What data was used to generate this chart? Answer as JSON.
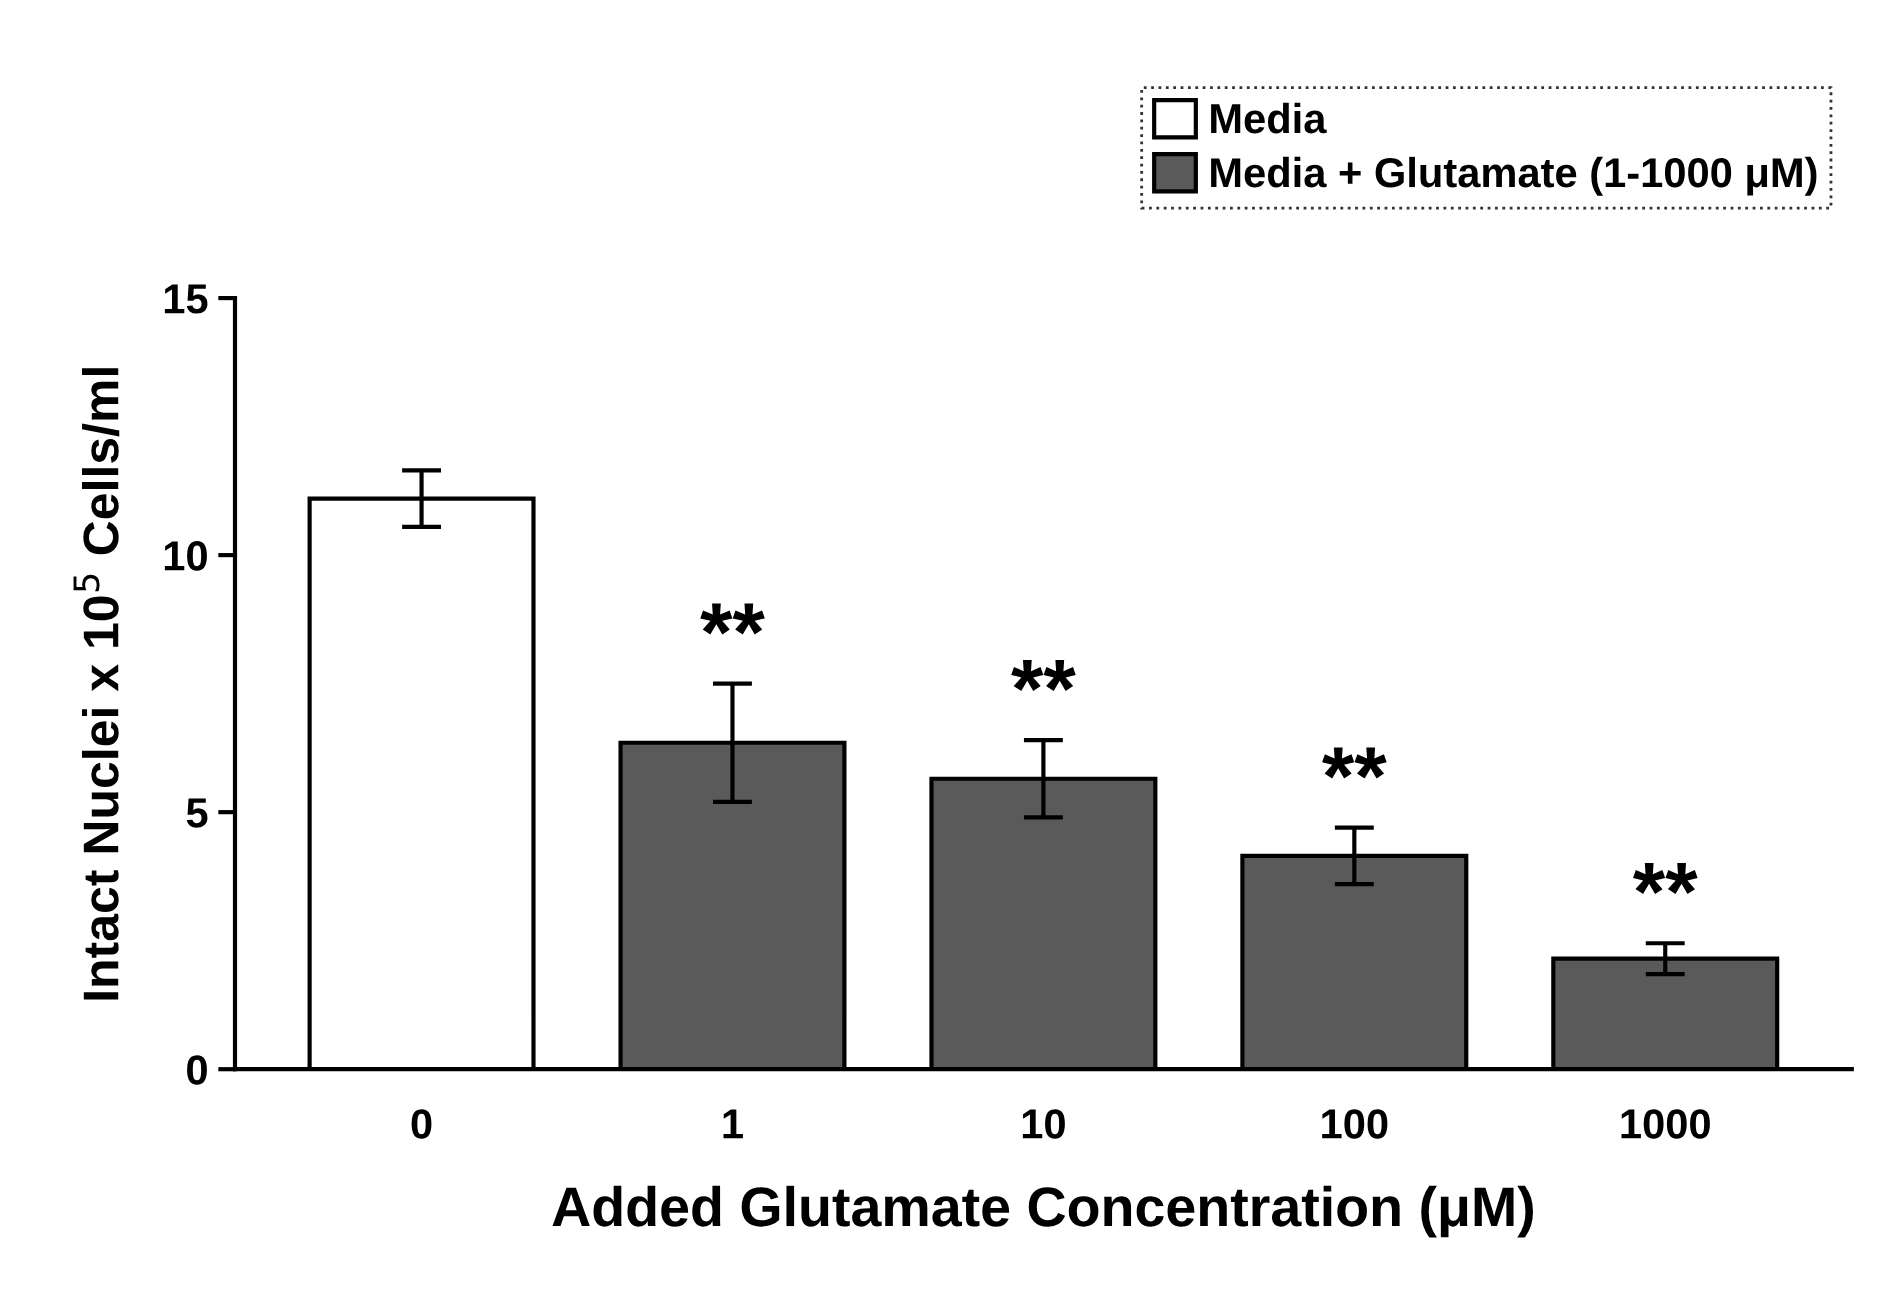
{
  "chart_data": {
    "type": "bar",
    "xlabel": "Added Glutamate Concentration (μM)",
    "ylabel": "Intact Nuclei x 10$^{5}$ Cells/ml",
    "categories": [
      "0",
      "1",
      "10",
      "100",
      "1000"
    ],
    "series": [
      {
        "name": "Media",
        "color": "#ffffff",
        "values": [
          11.1,
          null,
          null,
          null,
          null
        ],
        "errors": [
          0.55,
          null,
          null,
          null,
          null
        ]
      },
      {
        "name": "Media + Glutamate (1-1000 μM)",
        "color": "#5a5a5a",
        "values": [
          null,
          6.35,
          5.65,
          4.15,
          2.15
        ],
        "errors": [
          null,
          1.15,
          0.75,
          0.55,
          0.3
        ]
      }
    ],
    "ylim": [
      0,
      15
    ],
    "yticks": [
      0,
      5,
      10,
      15
    ],
    "grid": false,
    "legend": "top right",
    "annotations": [
      {
        "text": "**",
        "x": "1",
        "y": 7.5
      },
      {
        "text": "**",
        "x": "10",
        "y": 6.4
      },
      {
        "text": "**",
        "x": "100",
        "y": 4.7
      },
      {
        "text": "**",
        "x": "1000",
        "y": 2.45
      }
    ]
  }
}
